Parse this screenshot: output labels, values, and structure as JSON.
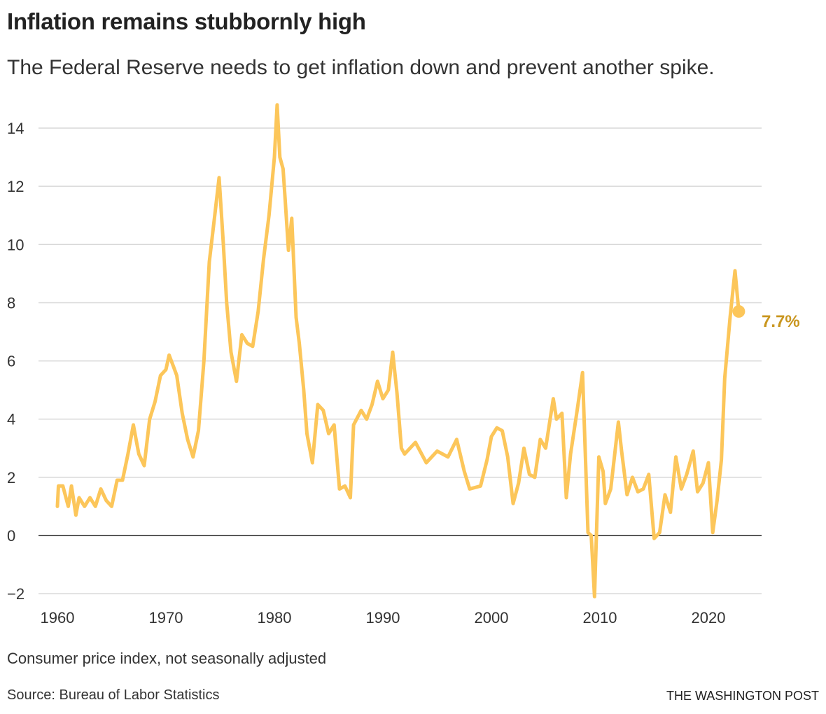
{
  "title": "Inflation remains stubbornly high",
  "subtitle": "The Federal Reserve needs to get inflation down and prevent another spike.",
  "note": "Consumer price index, not seasonally adjusted",
  "source": "Source: Bureau of Labor Statistics",
  "credit": "THE WASHINGTON POST",
  "chart_data": {
    "type": "line",
    "title": "Inflation remains stubbornly high",
    "xlabel": "",
    "ylabel": "",
    "xlim": [
      1960,
      2024
    ],
    "ylim": [
      -2,
      15
    ],
    "grid": true,
    "x_ticks": [
      1960,
      1970,
      1980,
      1990,
      2000,
      2010,
      2020
    ],
    "y_ticks": [
      -2,
      0,
      2,
      4,
      6,
      8,
      10,
      12,
      14
    ],
    "y_tick_labels": [
      "−2",
      "0",
      "2",
      "4",
      "6",
      "8",
      "10",
      "12",
      "14"
    ],
    "line_color": "#fcc65a",
    "annotation": {
      "x": 2022.8,
      "y": 7.7,
      "label": "7.7%",
      "color": "#c9961f"
    },
    "series": [
      {
        "x": [
          1960,
          1960.1,
          1960.5,
          1961,
          1961.3,
          1961.7,
          1962,
          1962.5,
          1963,
          1963.5,
          1964,
          1964.5,
          1965,
          1965.5,
          1966,
          1966.5,
          1967,
          1967.5,
          1968,
          1968.5,
          1969,
          1969.5,
          1970,
          1970.3,
          1970.7,
          1971,
          1971.5,
          1972,
          1972.5,
          1973,
          1973.5,
          1974,
          1974.5,
          1974.9,
          1975.3,
          1975.6,
          1976,
          1976.5,
          1977,
          1977.5,
          1978,
          1978.5,
          1979,
          1979.5,
          1980,
          1980.25,
          1980.5,
          1980.8,
          1981,
          1981.3,
          1981.6,
          1982,
          1982.3,
          1982.7,
          1983,
          1983.5,
          1984,
          1984.5,
          1985,
          1985.5,
          1986,
          1986.5,
          1987,
          1987.3,
          1988,
          1988.5,
          1989,
          1989.5,
          1990,
          1990.5,
          1990.9,
          1991.3,
          1991.7,
          1992,
          1993,
          1994,
          1995,
          1996,
          1996.8,
          1997.5,
          1998,
          1999,
          1999.6,
          2000,
          2000.5,
          2001,
          2001.5,
          2002,
          2002.5,
          2003,
          2003.5,
          2004,
          2004.5,
          2005,
          2005.7,
          2006,
          2006.5,
          2006.9,
          2007.3,
          2007.9,
          2008.4,
          2008.9,
          2009.2,
          2009.5,
          2009.9,
          2010.3,
          2010.5,
          2011,
          2011.7,
          2012,
          2012.5,
          2013,
          2013.5,
          2014,
          2014.5,
          2015,
          2015.5,
          2016,
          2016.5,
          2017,
          2017.5,
          2018,
          2018.6,
          2019,
          2019.5,
          2020,
          2020.4,
          2020.8,
          2021.2,
          2021.5,
          2022,
          2022.45,
          2022.8
        ],
        "y": [
          1.0,
          1.7,
          1.7,
          1.0,
          1.7,
          0.7,
          1.3,
          1.0,
          1.3,
          1.0,
          1.6,
          1.2,
          1.0,
          1.9,
          1.9,
          2.8,
          3.8,
          2.8,
          2.4,
          4.0,
          4.6,
          5.5,
          5.7,
          6.2,
          5.8,
          5.5,
          4.2,
          3.3,
          2.7,
          3.6,
          6.0,
          9.4,
          11.0,
          12.3,
          10.0,
          8.0,
          6.3,
          5.3,
          6.9,
          6.6,
          6.5,
          7.7,
          9.5,
          11.0,
          13.0,
          14.8,
          13.0,
          12.6,
          11.5,
          9.8,
          10.9,
          7.5,
          6.6,
          5.0,
          3.5,
          2.5,
          4.5,
          4.3,
          3.5,
          3.8,
          1.6,
          1.7,
          1.3,
          3.8,
          4.3,
          4.0,
          4.5,
          5.3,
          4.7,
          5.0,
          6.3,
          4.9,
          3.0,
          2.8,
          3.2,
          2.5,
          2.9,
          2.7,
          3.3,
          2.2,
          1.6,
          1.7,
          2.6,
          3.4,
          3.7,
          3.6,
          2.7,
          1.1,
          1.8,
          3.0,
          2.1,
          2.0,
          3.3,
          3.0,
          4.7,
          4.0,
          4.2,
          1.3,
          2.8,
          4.3,
          5.6,
          0.1,
          0.0,
          -2.1,
          2.7,
          2.2,
          1.1,
          1.6,
          3.9,
          2.9,
          1.4,
          2.0,
          1.5,
          1.6,
          2.1,
          -0.1,
          0.1,
          1.4,
          0.8,
          2.7,
          1.6,
          2.1,
          2.9,
          1.5,
          1.8,
          2.5,
          0.1,
          1.2,
          2.6,
          5.4,
          7.5,
          9.1,
          7.7
        ]
      }
    ]
  }
}
